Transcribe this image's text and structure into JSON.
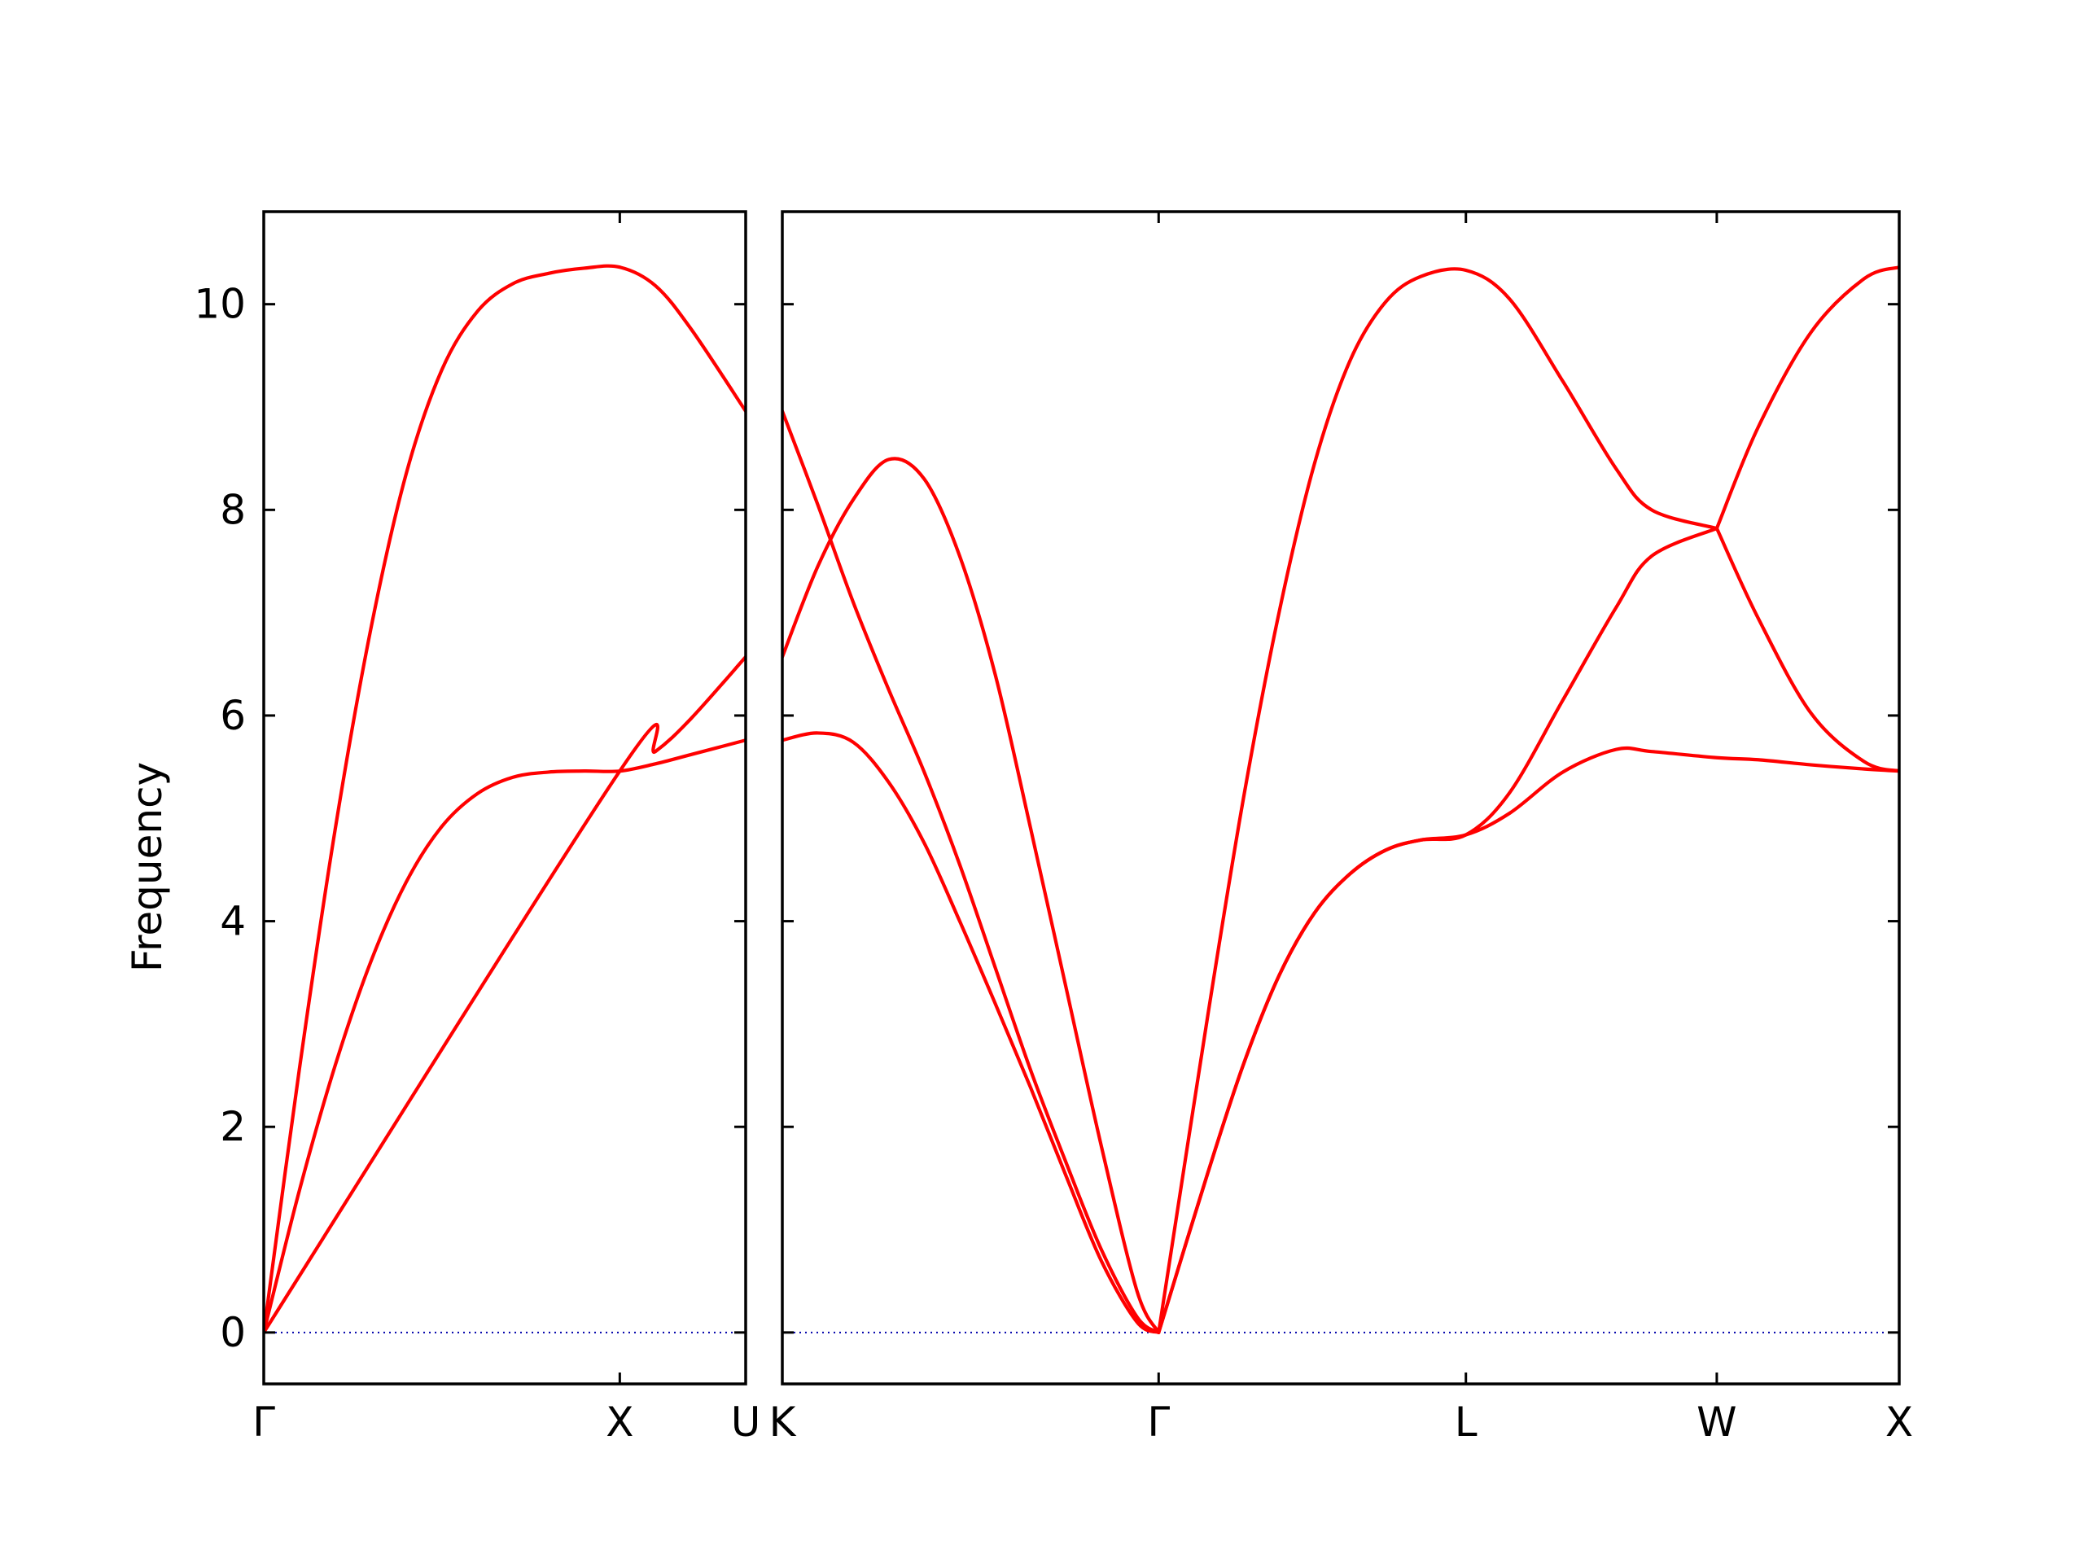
{
  "chart_data": {
    "type": "line",
    "ylabel": "Frequency",
    "ylim": [
      -0.5,
      10.9
    ],
    "yticks": [
      0,
      2,
      4,
      6,
      8,
      10
    ],
    "grid": false,
    "colors": {
      "band": "#ff0000",
      "zero": "#0000aa"
    },
    "panels": [
      {
        "name": "Γ-X-U",
        "xlim": [
          0,
          1.3536
        ],
        "xticks": [
          {
            "x": 0,
            "label": "Γ"
          },
          {
            "x": 1.0,
            "label": "X"
          },
          {
            "x": 1.3536,
            "label": "U"
          }
        ],
        "series": [
          {
            "x": [
              0,
              0.1,
              0.2,
              0.3,
              0.4,
              0.5,
              0.6,
              0.7,
              0.8,
              0.9,
              1.0,
              1.1,
              1.2,
              1.3536
            ],
            "y": [
              0,
              1.38,
              2.59,
              3.6,
              4.38,
              4.92,
              5.24,
              5.4,
              5.45,
              5.46,
              5.46,
              5.53,
              5.62,
              5.76
            ]
          },
          {
            "x": [
              0,
              1.0,
              1.1,
              1.2,
              1.3536
            ],
            "y": [
              0,
              5.46,
              5.65,
              5.97,
              6.57
            ]
          },
          {
            "x": [
              0,
              0.1,
              0.2,
              0.3,
              0.4,
              0.5,
              0.6,
              0.7,
              0.8,
              0.9,
              1.0,
              1.1,
              1.2,
              1.3536
            ],
            "y": [
              0,
              2.56,
              4.88,
              6.83,
              8.35,
              9.36,
              9.93,
              10.2,
              10.3,
              10.35,
              10.36,
              10.18,
              9.76,
              8.96
            ]
          }
        ]
      },
      {
        "name": "K-Γ-L-W-X",
        "xlim": [
          0,
          3.148
        ],
        "xticks": [
          {
            "x": 0,
            "label": "K"
          },
          {
            "x": 1.0607,
            "label": "Γ"
          },
          {
            "x": 1.9267,
            "label": "L"
          },
          {
            "x": 2.6338,
            "label": "W"
          },
          {
            "x": 3.148,
            "label": "X"
          }
        ],
        "series": [
          {
            "x": [
              0,
              0.1,
              0.2,
              0.3,
              0.4,
              0.5,
              0.6,
              0.7,
              0.8,
              0.9,
              1.0,
              1.0607
            ],
            "y": [
              5.76,
              5.83,
              5.74,
              5.35,
              4.76,
              4.0,
              3.2,
              2.38,
              1.52,
              0.69,
              0.1,
              0
            ]
          },
          {
            "x": [
              0,
              0.1,
              0.2,
              0.3,
              0.4,
              0.5,
              0.6,
              0.7,
              0.8,
              0.9,
              1.0,
              1.0607
            ],
            "y": [
              8.96,
              8.05,
              7.1,
              6.25,
              5.45,
              4.55,
              3.55,
              2.55,
              1.65,
              0.8,
              0.15,
              0
            ]
          },
          {
            "x": [
              0,
              0.1,
              0.2,
              0.3,
              0.4,
              0.5,
              0.6,
              0.7,
              0.8,
              0.9,
              1.0,
              1.0607
            ],
            "y": [
              6.57,
              7.45,
              8.1,
              8.49,
              8.3,
              7.55,
              6.4,
              4.9,
              3.35,
              1.8,
              0.4,
              0
            ]
          },
          {
            "x": [
              1.0607,
              1.2,
              1.3,
              1.4,
              1.5,
              1.6,
              1.7,
              1.8,
              1.9267,
              2.05,
              2.2,
              2.35,
              2.45,
              2.6338,
              2.75,
              2.9,
              3.05,
              3.148
            ],
            "y": [
              0,
              1.56,
              2.61,
              3.47,
              4.08,
              4.46,
              4.69,
              4.79,
              4.84,
              5.05,
              5.45,
              5.67,
              5.65,
              5.59,
              5.57,
              5.52,
              5.48,
              5.46
            ]
          },
          {
            "x": [
              1.0607,
              1.2,
              1.3,
              1.4,
              1.5,
              1.6,
              1.7,
              1.8,
              1.9267,
              2.05,
              2.2,
              2.35,
              2.45,
              2.6338
            ],
            "y": [
              0,
              1.56,
              2.61,
              3.47,
              4.08,
              4.46,
              4.69,
              4.79,
              4.84,
              5.25,
              6.15,
              7.05,
              7.55,
              7.82
            ]
          },
          {
            "x": [
              2.6338,
              2.75,
              2.9,
              3.05,
              3.148
            ],
            "y": [
              7.82,
              6.95,
              6.02,
              5.55,
              5.46
            ]
          },
          {
            "x": [
              1.0607,
              1.2,
              1.3,
              1.4,
              1.5,
              1.6,
              1.7,
              1.8,
              1.9267,
              2.05,
              2.2,
              2.35,
              2.45,
              2.6338
            ],
            "y": [
              0,
              3.1,
              5.2,
              7.0,
              8.45,
              9.45,
              10.02,
              10.27,
              10.33,
              10.05,
              9.25,
              8.4,
              8.0,
              7.82
            ]
          },
          {
            "x": [
              2.6338,
              2.75,
              2.9,
              3.05,
              3.148
            ],
            "y": [
              7.82,
              8.8,
              9.73,
              10.25,
              10.36
            ]
          }
        ]
      }
    ]
  }
}
